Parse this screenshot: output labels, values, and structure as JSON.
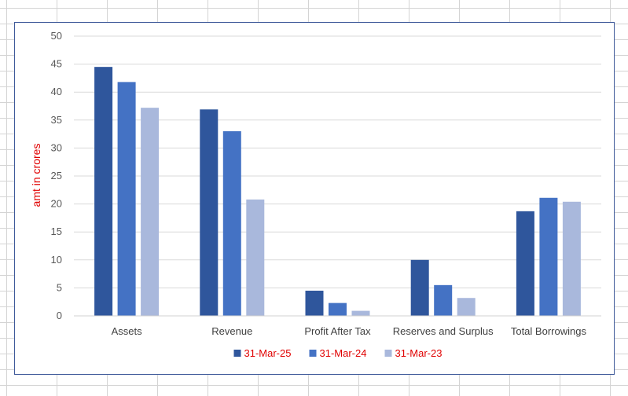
{
  "chart_data": {
    "type": "bar",
    "categories": [
      "Assets",
      "Revenue",
      "Profit After Tax",
      "Reserves and Surplus",
      "Total Borrowings"
    ],
    "series": [
      {
        "name": "31-Mar-25",
        "color": "#2f569c",
        "values": [
          44.5,
          36.9,
          4.5,
          10.0,
          18.7
        ]
      },
      {
        "name": "31-Mar-24",
        "color": "#4472c4",
        "values": [
          41.8,
          33.0,
          2.3,
          5.5,
          21.1
        ]
      },
      {
        "name": "31-Mar-23",
        "color": "#a9b8dc",
        "values": [
          37.2,
          20.8,
          0.9,
          3.2,
          20.4
        ]
      }
    ],
    "ylabel": "amt in crores",
    "ylabel_color": "#e00000",
    "legend_text_color": "#e00000",
    "ylim": [
      0,
      50
    ],
    "yticks": [
      "0",
      "5",
      "10",
      "15",
      "20",
      "25",
      "30",
      "35",
      "40",
      "45",
      "50"
    ],
    "grid": true,
    "legend_position": "bottom"
  }
}
